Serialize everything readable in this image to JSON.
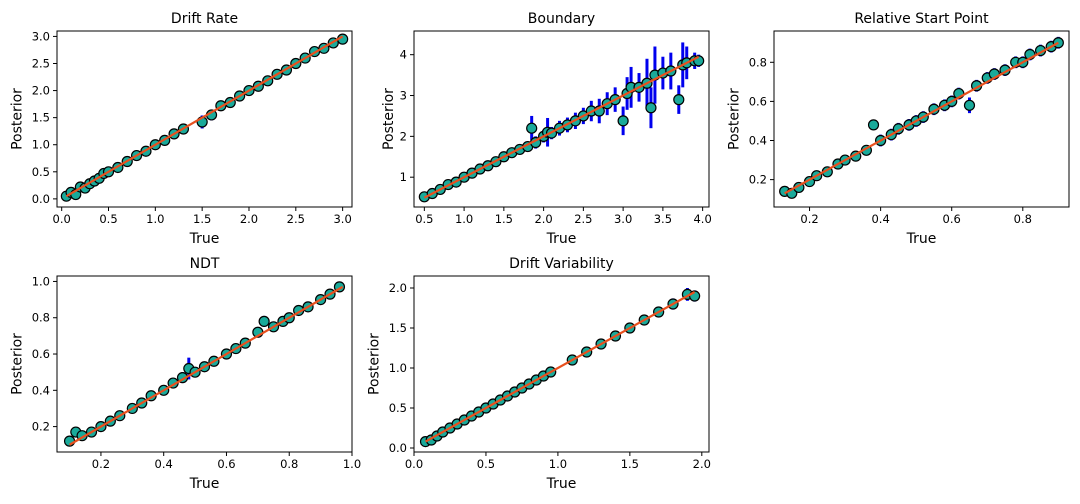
{
  "chart_data": [
    {
      "type": "scatter",
      "title": "Drift Rate",
      "xlabel": "True",
      "ylabel": "Posterior",
      "xlim": [
        -0.05,
        3.1
      ],
      "ylim": [
        -0.15,
        3.1
      ],
      "xticks": [
        0.0,
        0.5,
        1.0,
        1.5,
        2.0,
        2.5,
        3.0
      ],
      "xtick_labels": [
        "0.0",
        "0.5",
        "1.0",
        "1.5",
        "2.0",
        "2.5",
        "3.0"
      ],
      "yticks": [
        0.0,
        0.5,
        1.0,
        1.5,
        2.0,
        2.5,
        3.0
      ],
      "ytick_labels": [
        "0.0",
        "0.5",
        "1.0",
        "1.5",
        "2.0",
        "2.5",
        "3.0"
      ],
      "identity_line": [
        0.05,
        3.0
      ],
      "points": [
        [
          0.05,
          0.05
        ],
        [
          0.1,
          0.12
        ],
        [
          0.15,
          0.08
        ],
        [
          0.2,
          0.22
        ],
        [
          0.25,
          0.2
        ],
        [
          0.3,
          0.28
        ],
        [
          0.35,
          0.33
        ],
        [
          0.4,
          0.38
        ],
        [
          0.45,
          0.47
        ],
        [
          0.5,
          0.5
        ],
        [
          0.6,
          0.58
        ],
        [
          0.7,
          0.69
        ],
        [
          0.8,
          0.8
        ],
        [
          0.9,
          0.88
        ],
        [
          1.0,
          1.0
        ],
        [
          1.1,
          1.08
        ],
        [
          1.2,
          1.2
        ],
        [
          1.3,
          1.29
        ],
        [
          1.5,
          1.42
        ],
        [
          1.6,
          1.55
        ],
        [
          1.7,
          1.72
        ],
        [
          1.8,
          1.78
        ],
        [
          1.9,
          1.9
        ],
        [
          2.0,
          2.0
        ],
        [
          2.1,
          2.08
        ],
        [
          2.2,
          2.18
        ],
        [
          2.3,
          2.3
        ],
        [
          2.4,
          2.38
        ],
        [
          2.5,
          2.5
        ],
        [
          2.6,
          2.6
        ],
        [
          2.7,
          2.72
        ],
        [
          2.8,
          2.78
        ],
        [
          2.9,
          2.88
        ],
        [
          3.0,
          2.95
        ]
      ],
      "errors": [
        0.08,
        0.09,
        0.07,
        0.08,
        0.08,
        0.07,
        0.08,
        0.07,
        0.08,
        0.07,
        0.08,
        0.07,
        0.08,
        0.07,
        0.07,
        0.08,
        0.07,
        0.08,
        0.12,
        0.1,
        0.08,
        0.07,
        0.08,
        0.07,
        0.08,
        0.07,
        0.08,
        0.07,
        0.08,
        0.07,
        0.08,
        0.07,
        0.08,
        0.07
      ]
    },
    {
      "type": "scatter",
      "title": "Boundary",
      "xlabel": "True",
      "ylabel": "Posterior",
      "xlim": [
        0.37,
        4.08
      ],
      "ylim": [
        0.27,
        4.58
      ],
      "xticks": [
        0.5,
        1.0,
        1.5,
        2.0,
        2.5,
        3.0,
        3.5,
        4.0
      ],
      "xtick_labels": [
        "0.5",
        "1.0",
        "1.5",
        "2.0",
        "2.5",
        "3.0",
        "3.5",
        "4.0"
      ],
      "yticks": [
        1,
        2,
        3,
        4
      ],
      "ytick_labels": [
        "1",
        "2",
        "3",
        "4"
      ],
      "identity_line": [
        0.5,
        3.95
      ],
      "points": [
        [
          0.5,
          0.52
        ],
        [
          0.6,
          0.6
        ],
        [
          0.7,
          0.7
        ],
        [
          0.8,
          0.82
        ],
        [
          0.9,
          0.88
        ],
        [
          1.0,
          1.0
        ],
        [
          1.1,
          1.1
        ],
        [
          1.2,
          1.2
        ],
        [
          1.3,
          1.28
        ],
        [
          1.4,
          1.38
        ],
        [
          1.5,
          1.5
        ],
        [
          1.6,
          1.6
        ],
        [
          1.7,
          1.68
        ],
        [
          1.8,
          1.75
        ],
        [
          1.85,
          2.2
        ],
        [
          1.9,
          1.85
        ],
        [
          2.0,
          2.0
        ],
        [
          2.05,
          2.1
        ],
        [
          2.1,
          2.08
        ],
        [
          2.2,
          2.2
        ],
        [
          2.3,
          2.28
        ],
        [
          2.4,
          2.38
        ],
        [
          2.5,
          2.5
        ],
        [
          2.6,
          2.62
        ],
        [
          2.7,
          2.62
        ],
        [
          2.8,
          2.8
        ],
        [
          2.9,
          2.9
        ],
        [
          3.0,
          2.38
        ],
        [
          3.05,
          3.05
        ],
        [
          3.1,
          3.2
        ],
        [
          3.2,
          3.2
        ],
        [
          3.3,
          3.3
        ],
        [
          3.35,
          2.7
        ],
        [
          3.4,
          3.5
        ],
        [
          3.5,
          3.55
        ],
        [
          3.6,
          3.6
        ],
        [
          3.7,
          2.9
        ],
        [
          3.75,
          3.75
        ],
        [
          3.8,
          3.8
        ],
        [
          3.9,
          3.85
        ],
        [
          3.95,
          3.85
        ]
      ],
      "errors": [
        0.05,
        0.05,
        0.05,
        0.06,
        0.06,
        0.07,
        0.07,
        0.08,
        0.08,
        0.09,
        0.09,
        0.1,
        0.1,
        0.12,
        0.3,
        0.15,
        0.15,
        0.35,
        0.15,
        0.18,
        0.18,
        0.2,
        0.2,
        0.25,
        0.3,
        0.28,
        0.3,
        0.35,
        0.4,
        0.5,
        0.35,
        0.6,
        0.5,
        0.7,
        0.4,
        0.45,
        0.35,
        0.55,
        0.4,
        0.2,
        0.15
      ]
    },
    {
      "type": "scatter",
      "title": "Relative Start Point",
      "xlabel": "True",
      "ylabel": "Posterior",
      "xlim": [
        0.1,
        0.93
      ],
      "ylim": [
        0.06,
        0.96
      ],
      "xticks": [
        0.2,
        0.4,
        0.6,
        0.8
      ],
      "xtick_labels": [
        "0.2",
        "0.4",
        "0.6",
        "0.8"
      ],
      "yticks": [
        0.2,
        0.4,
        0.6,
        0.8
      ],
      "ytick_labels": [
        "0.2",
        "0.4",
        "0.6",
        "0.8"
      ],
      "identity_line": [
        0.13,
        0.9
      ],
      "points": [
        [
          0.13,
          0.14
        ],
        [
          0.15,
          0.13
        ],
        [
          0.17,
          0.16
        ],
        [
          0.2,
          0.19
        ],
        [
          0.22,
          0.22
        ],
        [
          0.25,
          0.24
        ],
        [
          0.28,
          0.28
        ],
        [
          0.3,
          0.3
        ],
        [
          0.33,
          0.32
        ],
        [
          0.36,
          0.35
        ],
        [
          0.38,
          0.48
        ],
        [
          0.4,
          0.4
        ],
        [
          0.43,
          0.43
        ],
        [
          0.45,
          0.46
        ],
        [
          0.48,
          0.48
        ],
        [
          0.5,
          0.5
        ],
        [
          0.52,
          0.52
        ],
        [
          0.55,
          0.56
        ],
        [
          0.58,
          0.58
        ],
        [
          0.6,
          0.6
        ],
        [
          0.62,
          0.64
        ],
        [
          0.65,
          0.58
        ],
        [
          0.67,
          0.68
        ],
        [
          0.7,
          0.72
        ],
        [
          0.72,
          0.74
        ],
        [
          0.75,
          0.76
        ],
        [
          0.78,
          0.8
        ],
        [
          0.8,
          0.8
        ],
        [
          0.82,
          0.84
        ],
        [
          0.85,
          0.86
        ],
        [
          0.88,
          0.88
        ],
        [
          0.9,
          0.9
        ]
      ],
      "errors": [
        0.02,
        0.02,
        0.02,
        0.02,
        0.02,
        0.02,
        0.02,
        0.02,
        0.02,
        0.02,
        0.02,
        0.03,
        0.03,
        0.03,
        0.03,
        0.03,
        0.03,
        0.03,
        0.03,
        0.03,
        0.03,
        0.04,
        0.03,
        0.03,
        0.03,
        0.03,
        0.03,
        0.03,
        0.03,
        0.03,
        0.03,
        0.03
      ]
    },
    {
      "type": "scatter",
      "title": "NDT",
      "xlabel": "True",
      "ylabel": "Posterior",
      "xlim": [
        0.06,
        1.0
      ],
      "ylim": [
        0.06,
        1.03
      ],
      "xticks": [
        0.2,
        0.4,
        0.6,
        0.8,
        1.0
      ],
      "xtick_labels": [
        "0.2",
        "0.4",
        "0.6",
        "0.8",
        "1.0"
      ],
      "yticks": [
        0.2,
        0.4,
        0.6,
        0.8,
        1.0
      ],
      "ytick_labels": [
        "0.2",
        "0.4",
        "0.6",
        "0.8",
        "1.0"
      ],
      "identity_line": [
        0.1,
        0.97
      ],
      "points": [
        [
          0.1,
          0.12
        ],
        [
          0.12,
          0.17
        ],
        [
          0.14,
          0.15
        ],
        [
          0.17,
          0.17
        ],
        [
          0.2,
          0.2
        ],
        [
          0.23,
          0.23
        ],
        [
          0.26,
          0.26
        ],
        [
          0.3,
          0.3
        ],
        [
          0.33,
          0.33
        ],
        [
          0.36,
          0.37
        ],
        [
          0.4,
          0.4
        ],
        [
          0.43,
          0.44
        ],
        [
          0.46,
          0.47
        ],
        [
          0.48,
          0.52
        ],
        [
          0.5,
          0.5
        ],
        [
          0.53,
          0.53
        ],
        [
          0.56,
          0.56
        ],
        [
          0.6,
          0.6
        ],
        [
          0.63,
          0.63
        ],
        [
          0.66,
          0.66
        ],
        [
          0.7,
          0.72
        ],
        [
          0.72,
          0.78
        ],
        [
          0.75,
          0.75
        ],
        [
          0.78,
          0.78
        ],
        [
          0.8,
          0.8
        ],
        [
          0.83,
          0.84
        ],
        [
          0.86,
          0.86
        ],
        [
          0.9,
          0.9
        ],
        [
          0.93,
          0.93
        ],
        [
          0.96,
          0.97
        ]
      ],
      "errors": [
        0.02,
        0.02,
        0.02,
        0.02,
        0.02,
        0.02,
        0.02,
        0.02,
        0.02,
        0.02,
        0.02,
        0.02,
        0.03,
        0.06,
        0.02,
        0.02,
        0.02,
        0.02,
        0.02,
        0.02,
        0.02,
        0.03,
        0.02,
        0.02,
        0.02,
        0.02,
        0.02,
        0.02,
        0.02,
        0.02
      ]
    },
    {
      "type": "scatter",
      "title": "Drift Variability",
      "xlabel": "True",
      "ylabel": "Posterior",
      "xlim": [
        0.0,
        2.05
      ],
      "ylim": [
        -0.05,
        2.15
      ],
      "xticks": [
        0.0,
        0.5,
        1.0,
        1.5,
        2.0
      ],
      "xtick_labels": [
        "0.0",
        "0.5",
        "1.0",
        "1.5",
        "2.0"
      ],
      "yticks": [
        0.0,
        0.5,
        1.0,
        1.5,
        2.0
      ],
      "ytick_labels": [
        "0.0",
        "0.5",
        "1.0",
        "1.5",
        "2.0"
      ],
      "identity_line": [
        0.08,
        1.95
      ],
      "points": [
        [
          0.08,
          0.08
        ],
        [
          0.12,
          0.1
        ],
        [
          0.16,
          0.15
        ],
        [
          0.2,
          0.2
        ],
        [
          0.25,
          0.25
        ],
        [
          0.3,
          0.3
        ],
        [
          0.35,
          0.35
        ],
        [
          0.4,
          0.4
        ],
        [
          0.45,
          0.45
        ],
        [
          0.5,
          0.5
        ],
        [
          0.55,
          0.55
        ],
        [
          0.6,
          0.6
        ],
        [
          0.65,
          0.65
        ],
        [
          0.7,
          0.7
        ],
        [
          0.75,
          0.75
        ],
        [
          0.8,
          0.8
        ],
        [
          0.85,
          0.85
        ],
        [
          0.9,
          0.9
        ],
        [
          0.95,
          0.95
        ],
        [
          1.1,
          1.1
        ],
        [
          1.2,
          1.2
        ],
        [
          1.3,
          1.3
        ],
        [
          1.4,
          1.4
        ],
        [
          1.5,
          1.5
        ],
        [
          1.6,
          1.6
        ],
        [
          1.7,
          1.7
        ],
        [
          1.8,
          1.8
        ],
        [
          1.9,
          1.92
        ],
        [
          1.95,
          1.9
        ]
      ],
      "errors": [
        0.04,
        0.04,
        0.04,
        0.04,
        0.04,
        0.04,
        0.04,
        0.04,
        0.04,
        0.04,
        0.04,
        0.04,
        0.04,
        0.04,
        0.04,
        0.04,
        0.04,
        0.04,
        0.04,
        0.05,
        0.05,
        0.05,
        0.06,
        0.06,
        0.06,
        0.06,
        0.07,
        0.08,
        0.07
      ]
    }
  ],
  "colors": {
    "errorbar": "#0000ee",
    "marker_fill": "#1aaa9a",
    "marker_edge": "#000000",
    "identity_line": "#e8501e",
    "axis": "#000000"
  }
}
